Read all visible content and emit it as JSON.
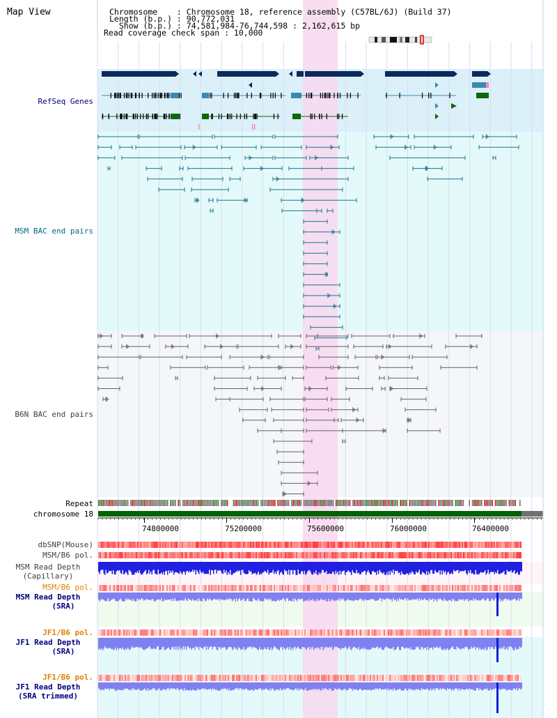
{
  "header": {
    "title": "Map View",
    "info_lines": [
      "Chromosome    : Chromosome 18, reference assembly (C57BL/6J) (Build 37)",
      "Length (b.p.) : 90,772,031",
      "  Show (b.p.) : 74,581,984-76,744,598 : 2,162,615 bp",
      "Read coverage check span : 10,000"
    ]
  },
  "tracks": {
    "refseq_label": "RefSeq Genes",
    "msm_bac_label": "MSM BAC end pairs",
    "b6n_bac_label": "B6N BAC end pairs",
    "repeat_label": "Repeat",
    "chromosome_label": "chromosome 18",
    "dbsnp_label": "dbSNP(Mouse)",
    "msm_b6_pol_label": "MSM/B6 pol.",
    "msm_depth_cap_label_1": "MSM Read Depth",
    "msm_depth_cap_label_2": "(Capillary)",
    "msm_b6_pol2_label": "MSM/B6 pol.",
    "msm_depth_sra_label_1": "MSM Read Depth",
    "msm_depth_sra_label_2": "(SRA)",
    "jf1_b6_pol_label": "JF1/B6 pol.",
    "jf1_depth_sra_label_1": "JF1 Read Depth",
    "jf1_depth_sra_label_2": "(SRA)",
    "jf1_b6_pol2_label": "JF1/B6 pol.",
    "jf1_depth_trim_label_1": "JF1 Read Depth",
    "jf1_depth_trim_label_2": "(SRA trimmed)"
  },
  "axis": {
    "ticks": [
      "74800000",
      "75200000",
      "75600000",
      "76000000",
      "76400000"
    ]
  },
  "colors": {
    "refseq_bg": "#dcf0fa",
    "msm_bac_bg": "#e4fafa",
    "b6n_bg": "#f4f6fa",
    "highlight": "#f8d8f0",
    "gene_dark": "#0a2a5a",
    "gene_teal": "#3a8ab0",
    "gene_green": "#0a6a0a",
    "msm_pair": "#20708a",
    "b6n_pair": "#606060",
    "chromosome_bar": "#006400",
    "depth_blue": "#2020e0",
    "depth_light": "#8080f0",
    "label_dark": "#000080",
    "label_orange": "#e08000",
    "label_teal": "#006a80",
    "label_gray": "#404040"
  }
}
